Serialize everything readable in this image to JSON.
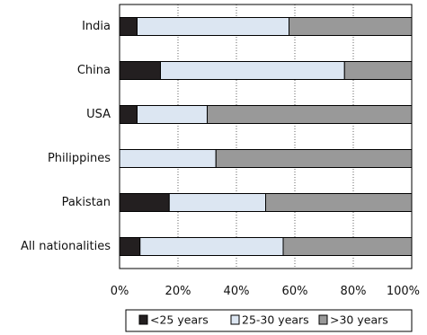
{
  "chart_data": {
    "type": "bar",
    "orientation": "horizontal",
    "stacked": true,
    "percent": true,
    "categories": [
      "India",
      "China",
      "USA",
      "Philippines",
      "Pakistan",
      "All nationalities"
    ],
    "series": [
      {
        "name": "<25 years",
        "color": "#231f20",
        "values": [
          6,
          14,
          6,
          0,
          17,
          7
        ]
      },
      {
        "name": "25-30 years",
        "color": "#dce6f2",
        "values": [
          52,
          63,
          24,
          33,
          33,
          49
        ]
      },
      {
        "name": ">30 years",
        "color": "#999999",
        "values": [
          42,
          23,
          70,
          67,
          50,
          44
        ]
      }
    ],
    "x_ticks": [
      "0%",
      "20%",
      "40%",
      "60%",
      "80%",
      "100%"
    ],
    "xlim": [
      0,
      100
    ],
    "grid": "vertical dotted",
    "legend_position": "bottom"
  }
}
